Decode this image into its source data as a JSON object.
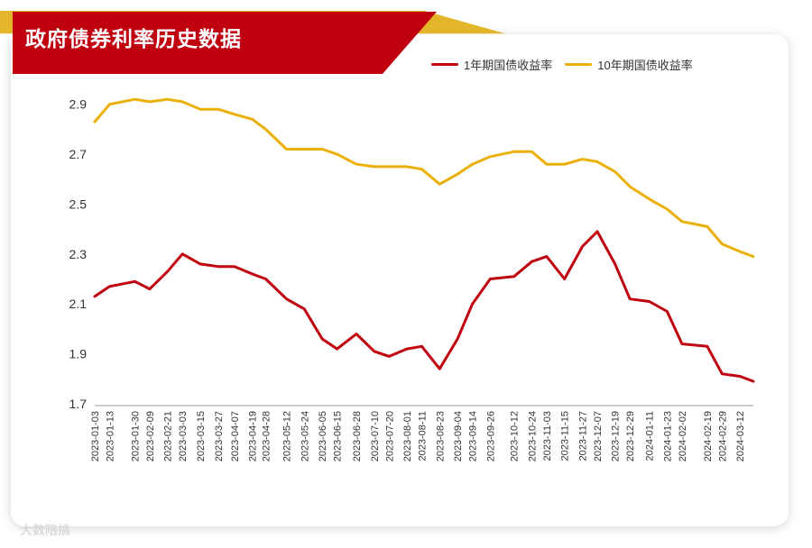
{
  "title": "政府债券利率历史数据",
  "watermark": "大数陪搞",
  "colors": {
    "y1": "#c0000e",
    "y10": "#eab007",
    "banner": "#c0000e",
    "accent": "#e3b52a"
  },
  "chart_data": {
    "type": "line",
    "title": "政府债券利率历史数据",
    "xlabel": "",
    "ylabel": "",
    "ylim": [
      1.7,
      3.0
    ],
    "yticks": [
      1.7,
      1.9,
      2.1,
      2.3,
      2.5,
      2.7,
      2.9
    ],
    "xlim": [
      "2023-01-03",
      "2024-03-21"
    ],
    "x_tick_labels": [
      "2023-01-03",
      "2023-01-13",
      "2023-01-30",
      "2023-02-09",
      "2023-02-21",
      "2023-03-03",
      "2023-03-15",
      "2023-03-27",
      "2023-04-07",
      "2023-04-19",
      "2023-04-28",
      "2023-05-12",
      "2023-05-24",
      "2023-06-05",
      "2023-06-15",
      "2023-06-28",
      "2023-07-10",
      "2023-07-20",
      "2023-08-01",
      "2023-08-11",
      "2023-08-23",
      "2023-09-04",
      "2023-09-14",
      "2023-09-26",
      "2023-10-12",
      "2023-10-24",
      "2023-11-03",
      "2023-11-15",
      "2023-11-27",
      "2023-12-07",
      "2023-12-19",
      "2023-12-29",
      "2024-01-11",
      "2024-01-23",
      "2024-02-02",
      "2024-02-19",
      "2024-02-29",
      "2024-03-12"
    ],
    "grid": false,
    "legend_position": "top-right",
    "series": [
      {
        "name": "1年期国债收益率",
        "x": [
          "2023-01-03",
          "2023-01-13",
          "2023-01-30",
          "2023-02-09",
          "2023-02-21",
          "2023-03-03",
          "2023-03-15",
          "2023-03-27",
          "2023-04-07",
          "2023-04-19",
          "2023-04-28",
          "2023-05-12",
          "2023-05-24",
          "2023-06-05",
          "2023-06-15",
          "2023-06-28",
          "2023-07-10",
          "2023-07-20",
          "2023-08-01",
          "2023-08-11",
          "2023-08-23",
          "2023-09-04",
          "2023-09-14",
          "2023-09-26",
          "2023-10-12",
          "2023-10-24",
          "2023-11-03",
          "2023-11-15",
          "2023-11-27",
          "2023-12-07",
          "2023-12-19",
          "2023-12-29",
          "2024-01-11",
          "2024-01-23",
          "2024-02-02",
          "2024-02-19",
          "2024-02-29",
          "2024-03-12",
          "2024-03-21"
        ],
        "values": [
          2.13,
          2.17,
          2.19,
          2.16,
          2.23,
          2.3,
          2.26,
          2.25,
          2.25,
          2.22,
          2.2,
          2.12,
          2.08,
          1.96,
          1.92,
          1.98,
          1.91,
          1.89,
          1.92,
          1.93,
          1.84,
          1.96,
          2.1,
          2.2,
          2.21,
          2.27,
          2.29,
          2.2,
          2.33,
          2.39,
          2.26,
          2.12,
          2.11,
          2.07,
          1.94,
          1.93,
          1.82,
          1.81,
          1.79
        ]
      },
      {
        "name": "10年期国债收益率",
        "x": [
          "2023-01-03",
          "2023-01-13",
          "2023-01-30",
          "2023-02-09",
          "2023-02-21",
          "2023-03-03",
          "2023-03-15",
          "2023-03-27",
          "2023-04-07",
          "2023-04-19",
          "2023-04-28",
          "2023-05-12",
          "2023-05-24",
          "2023-06-05",
          "2023-06-15",
          "2023-06-28",
          "2023-07-10",
          "2023-07-20",
          "2023-08-01",
          "2023-08-11",
          "2023-08-23",
          "2023-09-04",
          "2023-09-14",
          "2023-09-26",
          "2023-10-12",
          "2023-10-24",
          "2023-11-03",
          "2023-11-15",
          "2023-11-27",
          "2023-12-07",
          "2023-12-19",
          "2023-12-29",
          "2024-01-11",
          "2024-01-23",
          "2024-02-02",
          "2024-02-19",
          "2024-02-29",
          "2024-03-12",
          "2024-03-21"
        ],
        "values": [
          2.83,
          2.9,
          2.92,
          2.91,
          2.92,
          2.91,
          2.88,
          2.88,
          2.86,
          2.84,
          2.8,
          2.72,
          2.72,
          2.72,
          2.7,
          2.66,
          2.65,
          2.65,
          2.65,
          2.64,
          2.58,
          2.62,
          2.66,
          2.69,
          2.71,
          2.71,
          2.66,
          2.66,
          2.68,
          2.67,
          2.63,
          2.57,
          2.52,
          2.48,
          2.43,
          2.41,
          2.34,
          2.31,
          2.29
        ]
      }
    ]
  }
}
